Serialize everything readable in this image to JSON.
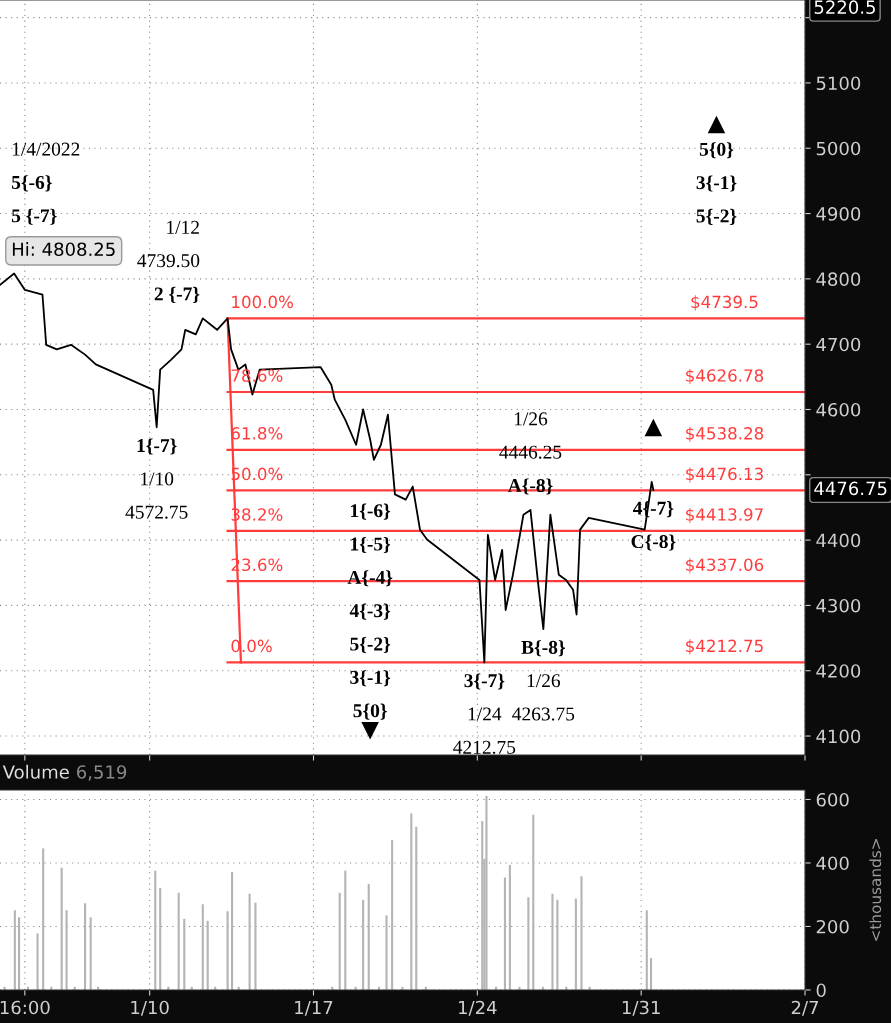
{
  "chart_data": [
    {
      "type": "line",
      "x": [
        "2022-01-03T14:38",
        "2022-01-04T05:02",
        "2022-01-04T16:05",
        "2022-01-05T10:05",
        "2022-01-05T13:55",
        "2022-01-06T00:43",
        "2022-01-06T15:22",
        "2022-01-07T05:46",
        "2022-01-07T16:48",
        "2022-01-10T03:36",
        "2022-01-10T07:12",
        "2022-01-10T10:48",
        "2022-01-10T21:50",
        "2022-01-11T08:38",
        "2022-01-11T12:29",
        "2022-01-11T23:17",
        "2022-01-12T06:29",
        "2022-01-12T21:07",
        "2022-01-13T07:55",
        "2022-01-13T11:31",
        "2022-01-13T18:58",
        "2022-01-14T02:10",
        "2022-01-14T09:22",
        "2022-01-14T16:48",
        "2022-01-17T07:12",
        "2022-01-17T18:14",
        "2022-01-17T21:50",
        "2022-01-18T08:38",
        "2022-01-18T19:41",
        "2022-01-19T02:53",
        "2022-01-19T10:05",
        "2022-01-19T13:55",
        "2022-01-19T21:07",
        "2022-01-20T04:19",
        "2022-01-20T11:31",
        "2022-01-20T22:34",
        "2022-01-21T05:46",
        "2022-01-21T13:12",
        "2022-01-21T20:24",
        "2022-01-24T02:10",
        "2022-01-24T07:12",
        "2022-01-24T10:48",
        "2022-01-24T18:14",
        "2022-01-25T01:26",
        "2022-01-25T05:02",
        "2022-01-25T12:29",
        "2022-01-25T23:17",
        "2022-01-26T06:29",
        "2022-01-26T13:55",
        "2022-01-26T19:41",
        "2022-01-27T02:53",
        "2022-01-27T11:31",
        "2022-01-27T18:58",
        "2022-01-28T02:10",
        "2022-01-28T05:46",
        "2022-01-28T09:22",
        "2022-01-28T18:14",
        "2022-01-31T03:36",
        "2022-01-31T10:48",
        "2022-01-31T12:29"
      ],
      "series": [
        {
          "color": "#000000",
          "values": [
            4791,
            4808.25,
            4783,
            4776,
            4699,
            4692,
            4699,
            4684,
            4669,
            4630,
            4572.75,
            4661,
            4676,
            4692,
            4722,
            4715,
            4739.5,
            4722,
            4739.5,
            4692,
            4661,
            4669,
            4623,
            4661,
            4665,
            4638,
            4615,
            4584,
            4546,
            4600,
            4554,
            4523,
            4546,
            4592,
            4470,
            4462,
            4482,
            4416,
            4401,
            4339,
            4212.75,
            4408,
            4339,
            4385,
            4293,
            4347,
            4439,
            4446.25,
            4339,
            4263.75,
            4439,
            4347,
            4339,
            4324,
            4286,
            4416,
            4434,
            4416,
            4489,
            4476.75
          ]
        },
        {
          "color": "#ff3b3b",
          "x": [
            "2022-01-13T07:55",
            "2022-01-13T21:36"
          ],
          "values": [
            4739.5,
            4212.75
          ]
        },
        {
          "name": "$4739.5",
          "color": "#ff3b3b",
          "x": [
            "2022-01-13T07:55",
            "2022-02-07"
          ],
          "values": [
            4739.5,
            4739.5
          ]
        },
        {
          "name": "$4626.78",
          "color": "#ff3b3b",
          "x": [
            "2022-01-13T07:55",
            "2022-02-07"
          ],
          "values": [
            4626.78,
            4626.78
          ]
        },
        {
          "name": "$4538.28",
          "color": "#ff3b3b",
          "x": [
            "2022-01-13T07:55",
            "2022-02-07"
          ],
          "values": [
            4538.28,
            4538.28
          ]
        },
        {
          "name": "$4476.13",
          "color": "#ff3b3b",
          "x": [
            "2022-01-13T07:55",
            "2022-02-07"
          ],
          "values": [
            4476.13,
            4476.13
          ]
        },
        {
          "name": "$4413.97",
          "color": "#ff3b3b",
          "x": [
            "2022-01-13T07:55",
            "2022-02-07"
          ],
          "values": [
            4413.97,
            4413.97
          ]
        },
        {
          "name": "$4337.06",
          "color": "#ff3b3b",
          "x": [
            "2022-01-13T07:55",
            "2022-02-07"
          ],
          "values": [
            4337.06,
            4337.06
          ]
        },
        {
          "name": "$4212.75",
          "color": "#ff3b3b",
          "x": [
            "2022-01-13T07:55",
            "2022-02-07"
          ],
          "values": [
            4212.75,
            4212.75
          ]
        }
      ],
      "xlim": [
        "2022-01-03T14:33",
        "2022-02-07"
      ],
      "xticks": [
        {
          "value": "2022-01-04T16:00",
          "label": null
        },
        {
          "value": "2022-01-10",
          "label": null
        },
        {
          "value": "2022-01-17",
          "label": null
        },
        {
          "value": "2022-01-24",
          "label": null
        },
        {
          "value": "2022-01-31",
          "label": null
        },
        {
          "value": "2022-02-07",
          "label": null
        }
      ],
      "ylim": [
        4071,
        5227
      ],
      "yticks": [
        4100,
        4200,
        4300,
        4400,
        {
          "value": 4500,
          "label": null
        },
        4600,
        4700,
        4800,
        4900,
        5000,
        5100,
        {
          "value": 5200,
          "label": null
        }
      ],
      "grid": true,
      "tick_labels": "y",
      "line_style": "solid",
      "marker": "none",
      "annotations": [
        {
          "text": "1/4/2022\n5{-6}\n5 {-7}\nHi: 4808.25",
          "x": "2022-01-04T05:02",
          "y": 4808.25
        },
        {
          "text": "1/12\n4739.50\n2 {-7}",
          "x": "2022-01-12T06:29",
          "y": 4739.5
        },
        {
          "text": "1{-7}\n1/10\n4572.75",
          "x": "2022-01-10T07:12",
          "y": 4572.75
        },
        {
          "text": "100.0%",
          "x": "2022-01-13T07:55",
          "y": 4739.5
        },
        {
          "text": "78.6%",
          "x": "2022-01-13T07:55",
          "y": 4626.78
        },
        {
          "text": "61.8%",
          "x": "2022-01-13T07:55",
          "y": 4538.28
        },
        {
          "text": "50.0%",
          "x": "2022-01-13T07:55",
          "y": 4476.13
        },
        {
          "text": "38.2%",
          "x": "2022-01-13T07:55",
          "y": 4413.97
        },
        {
          "text": "23.6%",
          "x": "2022-01-13T07:55",
          "y": 4337.06
        },
        {
          "text": "0.0%",
          "x": "2022-01-13T07:55",
          "y": 4212.75
        },
        {
          "text": "1{-6}\n1{-5}\nA{-4}\n4{-3}\n5{-2}\n3{-1}\n5{0}",
          "x": "2022-01-19T10:05",
          "y": 4212.75
        },
        {
          "text": "3{-7}\n1/24\n4212.75",
          "x": "2022-01-24T07:12",
          "y": 4212.75
        },
        {
          "text": "1/26\n4446.25\nA{-8}",
          "x": "2022-01-26T06:29",
          "y": 4446.25
        },
        {
          "text": "B{-8}\n1/26\n4263.75",
          "x": "2022-01-26T19:41",
          "y": 4263.75
        },
        {
          "text": "4{-7}\nC{-8}",
          "x": "2022-01-31T12:29",
          "y": 4476.75
        },
        "5{0}\n3{-1}\n5{-2}",
        "4476.75",
        "5220.5"
      ]
    },
    {
      "type": "bar",
      "title": "Volume",
      "ylabel": "<thousands>",
      "x": [
        "2022-01-03T19:12",
        "2022-01-04T05:46",
        "2022-01-04T10:05",
        "2022-01-04T19:12",
        "2022-01-05T05:02",
        "2022-01-05T10:48",
        "2022-01-05T19:12",
        "2022-01-06T05:46",
        "2022-01-06T10:48",
        "2022-01-06T19:12",
        "2022-01-07T05:46",
        "2022-01-07T11:31",
        "2022-01-07T19:12",
        "2022-01-10T05:46",
        "2022-01-10T10:48",
        "2022-01-10T19:12",
        "2022-01-11T05:46",
        "2022-01-11T11:31",
        "2022-01-11T19:12",
        "2022-01-12T06:29",
        "2022-01-12T11:31",
        "2022-01-12T19:12",
        "2022-01-13T07:55",
        "2022-01-13T12:29",
        "2022-01-13T19:12",
        "2022-01-14T06:29",
        "2022-01-14T12:29",
        "2022-01-17T19:12",
        "2022-01-18T02:53",
        "2022-01-18T08:38",
        "2022-01-18T19:12",
        "2022-01-19T02:53",
        "2022-01-19T08:38",
        "2022-01-19T19:12",
        "2022-01-20T02:53",
        "2022-01-20T08:38",
        "2022-01-20T19:12",
        "2022-01-21T04:19",
        "2022-01-21T09:22",
        "2022-01-21T19:12",
        "2022-01-24T05:02",
        "2022-01-24T07:12",
        "2022-01-24T09:22",
        "2022-01-24T19:12",
        "2022-01-25T04:19",
        "2022-01-25T09:22",
        "2022-01-25T19:12",
        "2022-01-26T04:19",
        "2022-01-26T09:22",
        "2022-01-26T19:12",
        "2022-01-27T05:02",
        "2022-01-27T10:05",
        "2022-01-27T19:12",
        "2022-01-28T05:02",
        "2022-01-28T10:48",
        "2022-01-28T19:12",
        "2022-01-31T05:46",
        "2022-01-31T10:05"
      ],
      "values": [
        10,
        251,
        229,
        10,
        178,
        446,
        10,
        385,
        251,
        10,
        273,
        229,
        10,
        376,
        321,
        10,
        306,
        224,
        10,
        270,
        218,
        10,
        248,
        372,
        10,
        303,
        275,
        10,
        306,
        376,
        10,
        284,
        334,
        10,
        235,
        472,
        10,
        556,
        514,
        10,
        532,
        413,
        611,
        10,
        354,
        394,
        10,
        292,
        552,
        10,
        303,
        284,
        10,
        288,
        358,
        10,
        251,
        101
      ],
      "color": "#b4b4b4",
      "xlim": [
        "2022-01-03T14:33",
        "2022-02-07"
      ],
      "xticks": [
        {
          "value": "2022-01-04T16:00",
          "label": "16:00"
        },
        {
          "value": "2022-01-10",
          "label": "1/10"
        },
        {
          "value": "2022-01-17",
          "label": "1/17"
        },
        {
          "value": "2022-01-24",
          "label": "1/24"
        },
        {
          "value": "2022-01-31",
          "label": "1/31"
        },
        {
          "value": "2022-02-07",
          "label": "2/7"
        }
      ],
      "ylim": [
        0,
        630
      ],
      "yticks": [
        0,
        200,
        400,
        600
      ],
      "grid": true,
      "annotations": [
        "6,519"
      ]
    }
  ]
}
